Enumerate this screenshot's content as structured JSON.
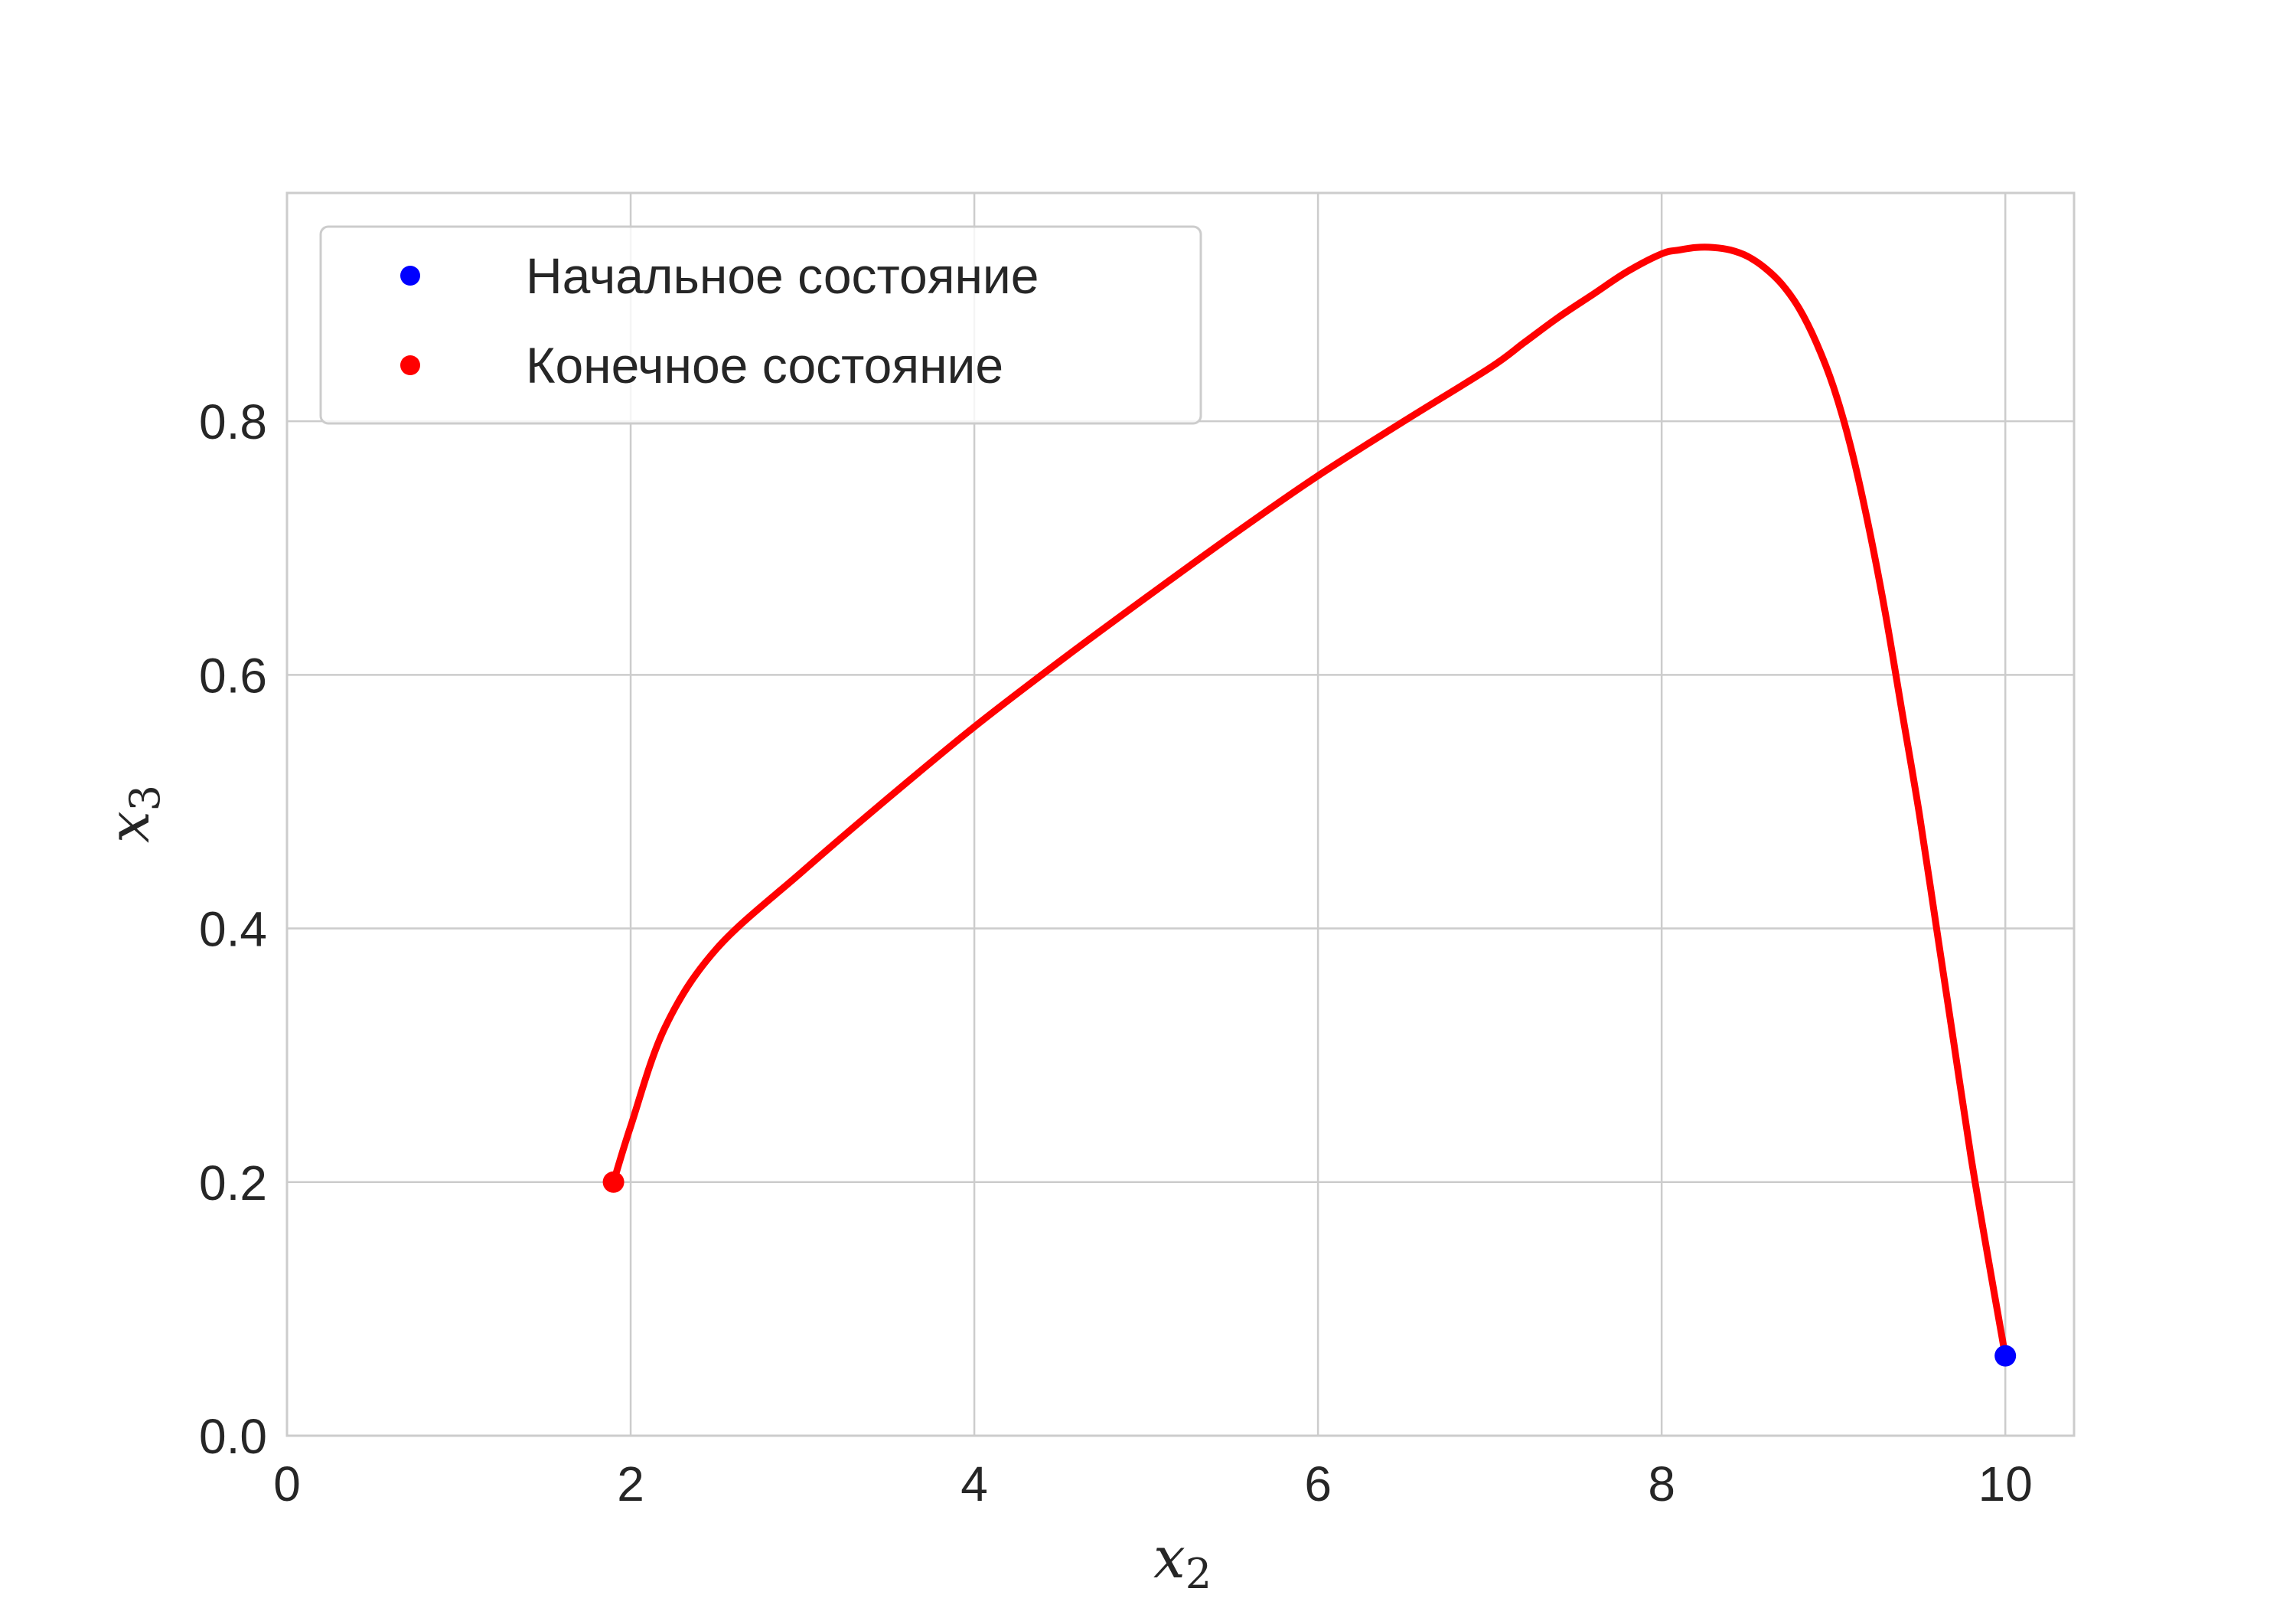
{
  "chart_data": {
    "type": "line",
    "title": "",
    "xlabel": "x",
    "xlabel_sub": "2",
    "ylabel": "x",
    "ylabel_sub": "3",
    "xlim": [
      0,
      10.4
    ],
    "ylim": [
      0,
      0.98
    ],
    "xticks": [
      0,
      2,
      4,
      6,
      8,
      10
    ],
    "xtick_labels": [
      "0",
      "2",
      "4",
      "6",
      "8",
      "10"
    ],
    "yticks": [
      0.0,
      0.2,
      0.4,
      0.6,
      0.8
    ],
    "ytick_labels": [
      "0.0",
      "0.2",
      "0.4",
      "0.6",
      "0.8"
    ],
    "grid": true,
    "legend_position": "top-left",
    "series": [
      {
        "kind": "line",
        "color": "#ff0000",
        "x": [
          10.0,
          9.9,
          9.8,
          9.7,
          9.6,
          9.5,
          9.4,
          9.3,
          9.2,
          9.1,
          9.0,
          8.9,
          8.8,
          8.7,
          8.6,
          8.5,
          8.4,
          8.3,
          8.2,
          8.1,
          8.0,
          7.8,
          7.6,
          7.4,
          7.2,
          7.0,
          6.5,
          6.0,
          5.5,
          5.0,
          4.5,
          4.0,
          3.5,
          3.0,
          2.5,
          2.2,
          2.0,
          1.9
        ],
        "y": [
          0.063,
          0.14,
          0.22,
          0.31,
          0.4,
          0.49,
          0.57,
          0.65,
          0.72,
          0.78,
          0.827,
          0.862,
          0.889,
          0.908,
          0.921,
          0.93,
          0.935,
          0.937,
          0.937,
          0.935,
          0.932,
          0.918,
          0.9,
          0.882,
          0.862,
          0.842,
          0.8,
          0.757,
          0.71,
          0.661,
          0.611,
          0.559,
          0.503,
          0.445,
          0.384,
          0.322,
          0.244,
          0.2
        ]
      },
      {
        "kind": "point",
        "name": "Начальное состояние",
        "color": "#0000ff",
        "x": [
          10.0
        ],
        "y": [
          0.063
        ]
      },
      {
        "kind": "point",
        "name": "Конечное состояние",
        "color": "#ff0000",
        "x": [
          1.9
        ],
        "y": [
          0.2
        ]
      }
    ]
  }
}
